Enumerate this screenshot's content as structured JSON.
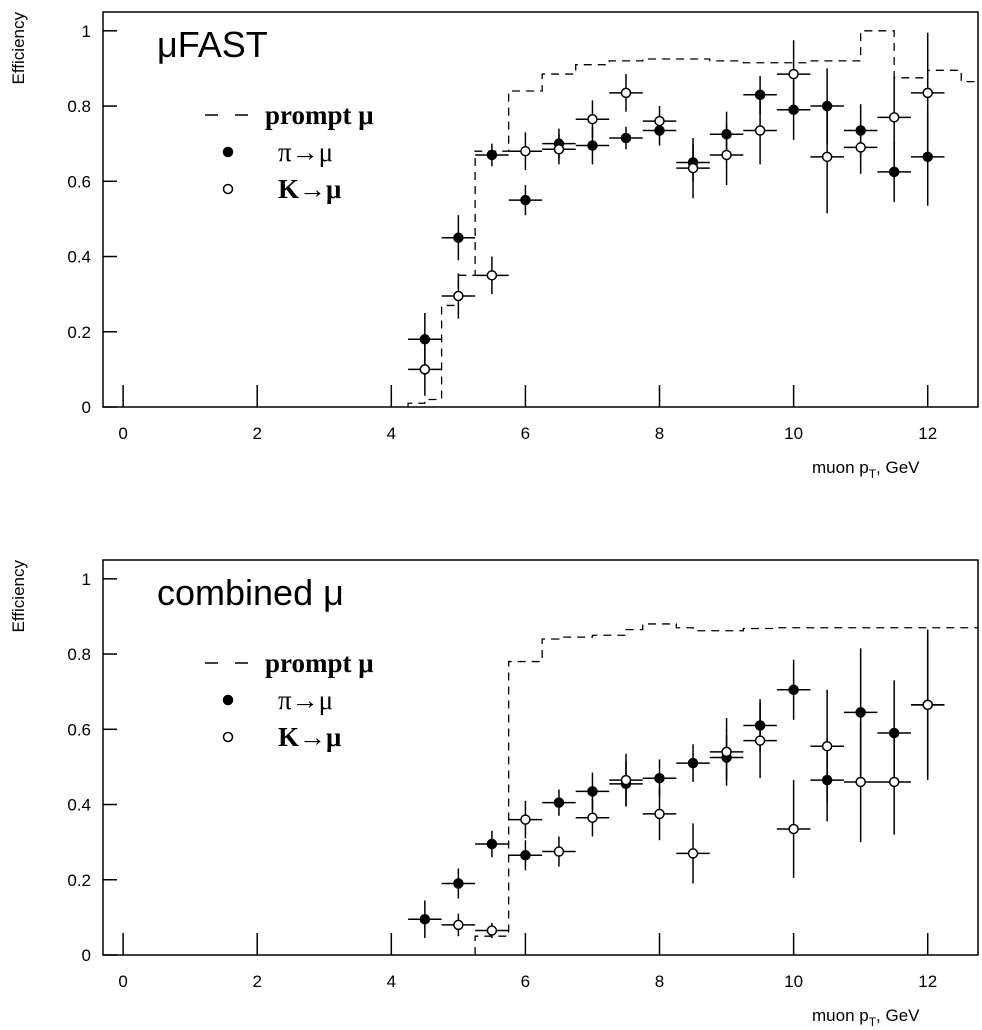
{
  "chart_data": [
    {
      "type": "scatter",
      "annotation": "μFAST",
      "ylabel": "Efficiency",
      "xlabel": [
        "muon p",
        "T",
        ", GeV"
      ],
      "xlim": [
        -0.3,
        12.75
      ],
      "ylim": [
        0,
        1.05
      ],
      "xticks": [
        0,
        2,
        4,
        6,
        8,
        10,
        12
      ],
      "yticks": [
        0,
        0.2,
        0.4,
        0.6,
        0.8,
        1
      ],
      "histogram": {
        "name": "prompt μ",
        "color": "#000000",
        "bins": [
          4.25,
          4.5,
          4.75,
          5.0,
          5.25,
          5.75,
          6.25,
          6.75,
          7.25,
          7.75,
          8.75,
          9.25,
          9.75,
          10.25,
          10.75,
          11.0,
          11.5,
          12.0,
          12.5,
          12.75
        ],
        "values": [
          0.01,
          0.02,
          0.27,
          0.35,
          0.68,
          0.84,
          0.885,
          0.91,
          0.92,
          0.925,
          0.92,
          0.915,
          0.915,
          0.92,
          0.92,
          1.0,
          0.875,
          0.895,
          0.865
        ]
      },
      "series": [
        {
          "name": "π→μ",
          "color": "#000000",
          "marker": "filled",
          "xerror": 0.25,
          "x": [
            4.5,
            5,
            5.5,
            6,
            6.5,
            7,
            7.5,
            8,
            8.5,
            9,
            9.5,
            10,
            10.5,
            11,
            11.5,
            12
          ],
          "values": [
            0.18,
            0.45,
            0.67,
            0.55,
            0.7,
            0.695,
            0.715,
            0.735,
            0.65,
            0.725,
            0.83,
            0.79,
            0.8,
            0.735,
            0.625,
            0.665
          ],
          "errors": [
            0.07,
            0.06,
            0.03,
            0.04,
            0.04,
            0.05,
            0.03,
            0.04,
            0.05,
            0.06,
            0.05,
            0.08,
            0.1,
            0.07,
            0.08,
            0.13
          ]
        },
        {
          "name": "K→μ",
          "color": "#000000",
          "marker": "open",
          "xerror": 0.25,
          "x": [
            4.5,
            5,
            5.5,
            6,
            6.5,
            7,
            7.5,
            8,
            8.5,
            9,
            9.5,
            10,
            10.5,
            11,
            11.5,
            12
          ],
          "values": [
            0.1,
            0.295,
            0.35,
            0.68,
            0.685,
            0.765,
            0.835,
            0.76,
            0.635,
            0.67,
            0.735,
            0.885,
            0.665,
            0.69,
            0.77,
            0.835
          ],
          "errors": [
            0.07,
            0.06,
            0.05,
            0.05,
            0.04,
            0.05,
            0.05,
            0.04,
            0.08,
            0.08,
            0.09,
            0.09,
            0.15,
            0.07,
            0.11,
            0.16
          ]
        }
      ]
    },
    {
      "type": "scatter",
      "annotation": "combined μ",
      "ylabel": "Efficiency",
      "xlabel": [
        "muon p",
        "T",
        ", GeV"
      ],
      "xlim": [
        -0.3,
        12.75
      ],
      "ylim": [
        0,
        1.05
      ],
      "xticks": [
        0,
        2,
        4,
        6,
        8,
        10,
        12
      ],
      "yticks": [
        0,
        0.2,
        0.4,
        0.6,
        0.8,
        1
      ],
      "histogram": {
        "name": "prompt μ",
        "color": "#000000",
        "bins": [
          5.25,
          5.75,
          6.25,
          6.5,
          7.0,
          7.5,
          7.75,
          8.25,
          8.5,
          9.25,
          9.75,
          12.75
        ],
        "values": [
          0.05,
          0.78,
          0.84,
          0.845,
          0.85,
          0.865,
          0.88,
          0.87,
          0.862,
          0.868,
          0.87
        ]
      },
      "series": [
        {
          "name": "π→μ",
          "color": "#000000",
          "marker": "filled",
          "xerror": 0.25,
          "x": [
            4.5,
            5,
            5.5,
            6,
            6.5,
            7,
            7.5,
            8,
            8.5,
            9,
            9.5,
            10,
            10.5,
            11,
            11.5,
            12
          ],
          "values": [
            0.095,
            0.19,
            0.295,
            0.265,
            0.405,
            0.435,
            0.455,
            0.47,
            0.51,
            0.525,
            0.61,
            0.705,
            0.465,
            0.645,
            0.59,
            0.665
          ],
          "errors": [
            0.05,
            0.04,
            0.035,
            0.04,
            0.035,
            0.05,
            0.06,
            0.05,
            0.05,
            0.06,
            0.07,
            0.08,
            0.11,
            0.17,
            0.14,
            0.19
          ]
        },
        {
          "name": "K→μ",
          "color": "#000000",
          "marker": "open",
          "xerror": 0.25,
          "x": [
            5,
            5.5,
            6,
            6.5,
            7,
            7.5,
            8,
            8.5,
            9,
            9.5,
            10,
            10.5,
            11,
            11.5,
            12
          ],
          "values": [
            0.08,
            0.065,
            0.36,
            0.275,
            0.365,
            0.465,
            0.375,
            0.27,
            0.54,
            0.57,
            0.335,
            0.555,
            0.46,
            0.46,
            0.665
          ],
          "errors": [
            0.03,
            0.02,
            0.05,
            0.04,
            0.05,
            0.07,
            0.07,
            0.08,
            0.09,
            0.1,
            0.13,
            0.15,
            0.16,
            0.14,
            0.2
          ]
        }
      ]
    }
  ]
}
